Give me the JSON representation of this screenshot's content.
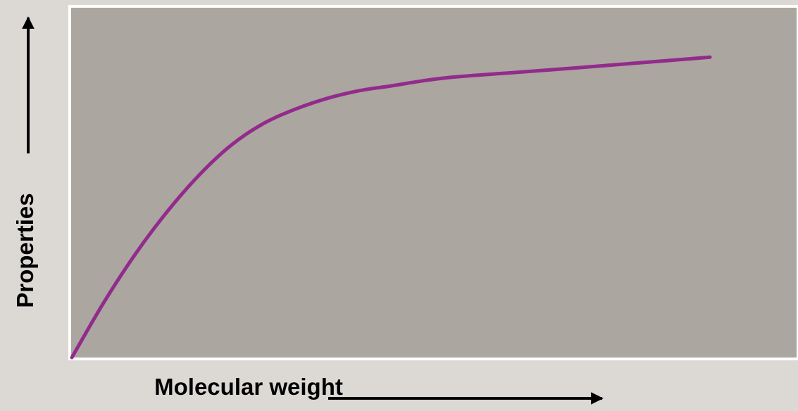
{
  "chart_data": {
    "type": "line",
    "title": "",
    "xlabel": "Molecular weight",
    "ylabel": "Properties",
    "xlim": [
      0,
      1
    ],
    "ylim": [
      0,
      1
    ],
    "grid": false,
    "axis_ticks": "none",
    "series": [
      {
        "color": "#922b8c",
        "x": [
          0.0,
          0.05,
          0.1,
          0.15,
          0.2,
          0.25,
          0.3,
          0.35,
          0.4,
          0.45,
          0.5,
          0.55,
          0.6,
          0.7,
          0.8,
          0.9,
          1.0
        ],
        "y": [
          0.0,
          0.172,
          0.325,
          0.458,
          0.572,
          0.665,
          0.732,
          0.777,
          0.811,
          0.835,
          0.85,
          0.866,
          0.878,
          0.893,
          0.908,
          0.924,
          0.94
        ]
      }
    ]
  },
  "colors": {
    "page_background": "#dcd9d5",
    "plot_background": "#aba69f",
    "plot_border": "#ffffff",
    "line": "#922b8c",
    "text": "#000000"
  }
}
